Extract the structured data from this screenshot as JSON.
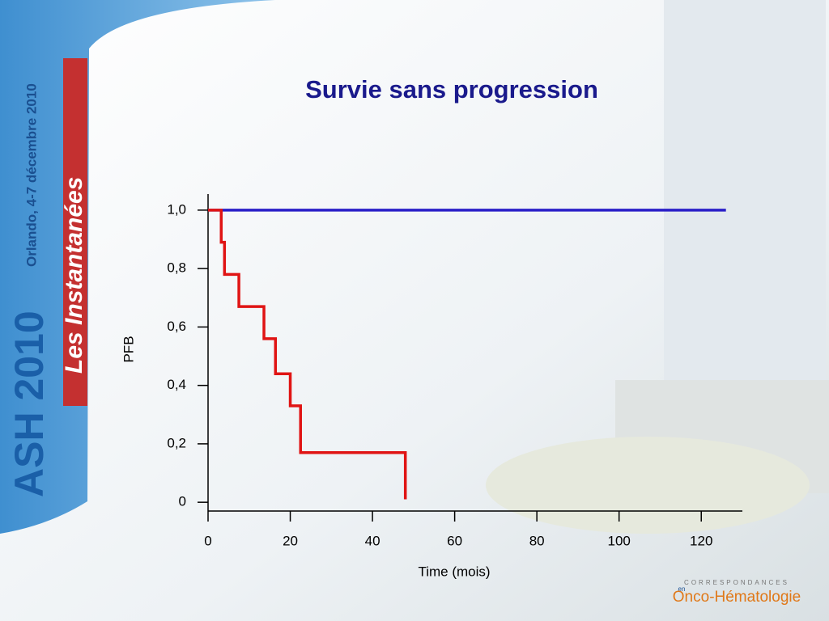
{
  "slide": {
    "event": "ASH 2010",
    "subtitle": "Les Instantanées",
    "place_date": "Orlando, 4-7 décembre 2010",
    "logo_top": "CORRESPONDANCES",
    "logo_mid": "en",
    "logo_main": "Onco-Hématologie"
  },
  "chart_data": {
    "type": "line",
    "title": "Survie sans progression",
    "y_label": "PFB",
    "x_label": "Time (mois)",
    "xlim": [
      0,
      130
    ],
    "xticks": [
      0,
      20,
      40,
      60,
      80,
      100,
      120
    ],
    "ylim": [
      -0.03,
      1.055
    ],
    "yticks": [
      0,
      {
        "value": 0.2,
        "label": "0,2"
      },
      {
        "value": 0.4,
        "label": "0,4"
      },
      {
        "value": 0.6,
        "label": "0,6"
      },
      {
        "value": 0.8,
        "label": "0,8"
      },
      {
        "value": 1,
        "label": "1,0"
      }
    ],
    "series": [
      {
        "color": "#2a1fc8",
        "x": [
          0,
          126
        ],
        "values": [
          1,
          1
        ]
      },
      {
        "color": "#e01414",
        "x": [
          0,
          3.2,
          3.2,
          4,
          4,
          7.5,
          7.5,
          13.6,
          13.6,
          16.4,
          16.4,
          20,
          20,
          22.5,
          22.5,
          48,
          48
        ],
        "values": [
          1,
          1,
          0.89,
          0.89,
          0.78,
          0.78,
          0.67,
          0.67,
          0.56,
          0.56,
          0.44,
          0.44,
          0.33,
          0.33,
          0.17,
          0.17,
          0.01
        ]
      }
    ]
  }
}
